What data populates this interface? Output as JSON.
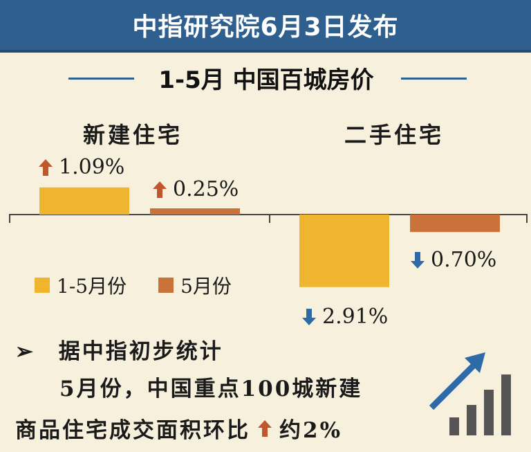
{
  "banner": {
    "title": "中指研究院6月3日发布"
  },
  "subtitle": "1-5月 中国百城房价",
  "chart_data": {
    "type": "bar",
    "groups": [
      {
        "label": "新建住宅",
        "values": [
          1.09,
          0.25
        ],
        "labels": [
          "1.09%",
          "0.25%"
        ]
      },
      {
        "label": "二手住宅",
        "values": [
          -2.91,
          -0.7
        ],
        "labels": [
          "2.91%",
          "0.70%"
        ]
      }
    ],
    "series": [
      {
        "name": "1-5月份",
        "color": "#f0b52e"
      },
      {
        "name": "5月份",
        "color": "#c9733a"
      }
    ],
    "colors": {
      "up_arrow": "#c0562c",
      "down_arrow": "#2e6aa8"
    }
  },
  "note": {
    "marker": "➢",
    "line1": "据中指初步统计",
    "line2": "5月份，中国重点100城新建",
    "line3": "商品住宅成交面积环比",
    "line3_value": "约2%",
    "icon": "growth-chart-icon"
  }
}
